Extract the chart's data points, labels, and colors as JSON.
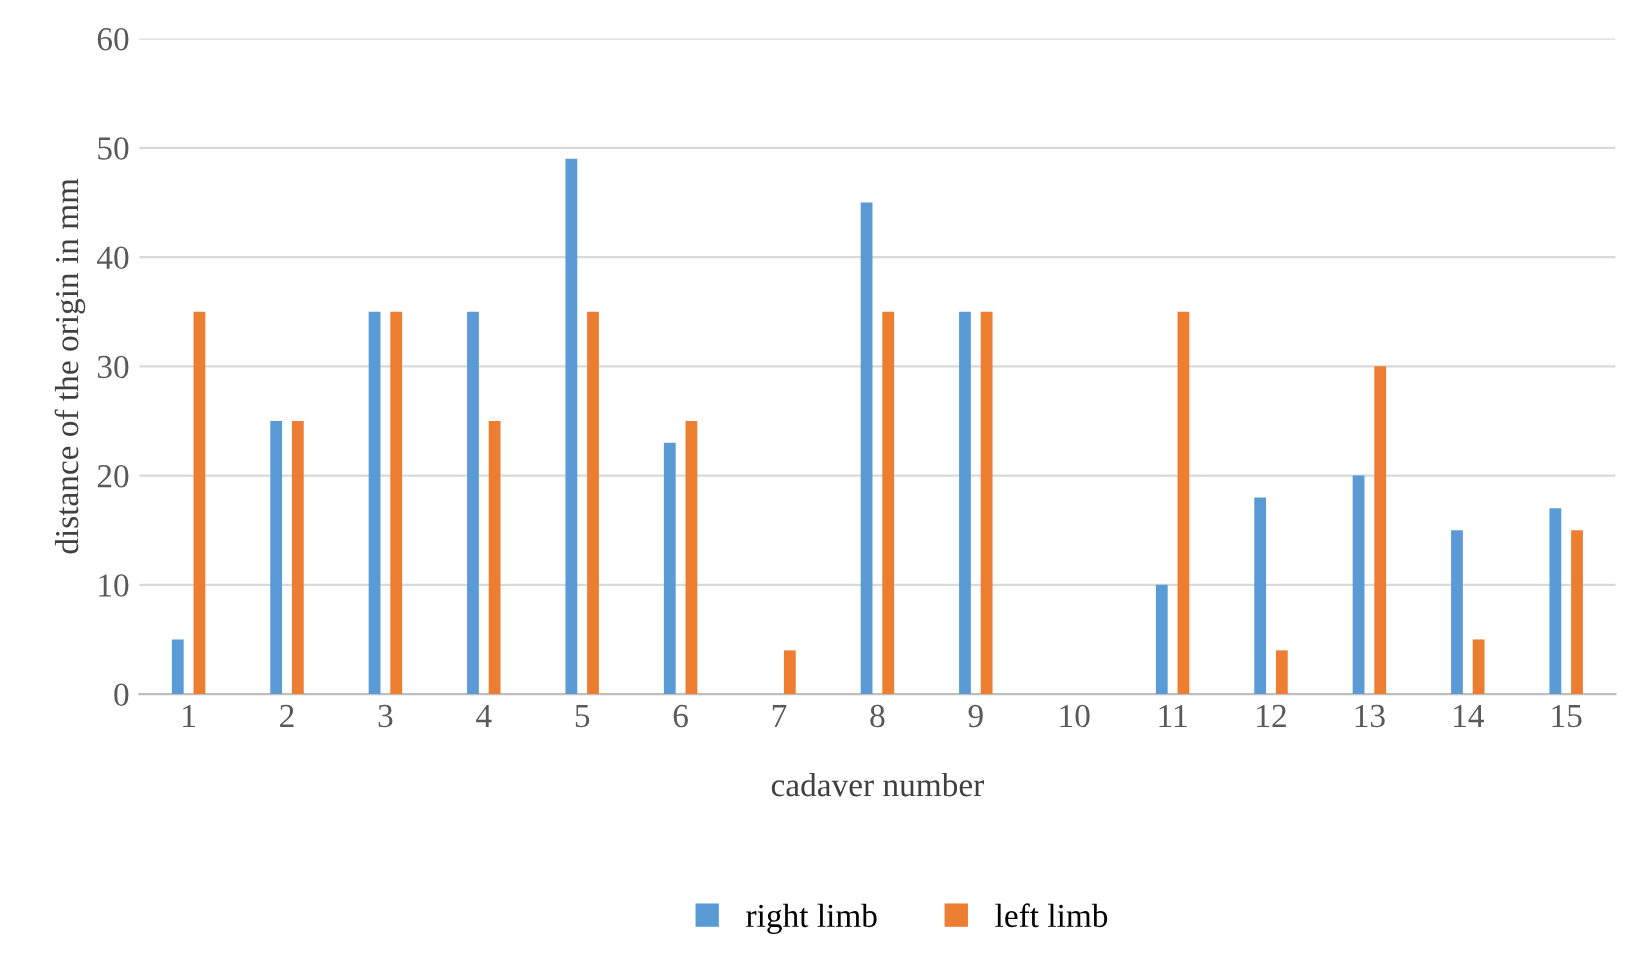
{
  "chart_data": {
    "type": "bar",
    "xlabel": "cadaver number",
    "ylabel": "distance of the origin in mm",
    "categories": [
      "1",
      "2",
      "3",
      "4",
      "5",
      "6",
      "7",
      "8",
      "9",
      "10",
      "11",
      "12",
      "13",
      "14",
      "15"
    ],
    "series": [
      {
        "name": "right limb",
        "color": "#5b9bd5",
        "values": [
          5,
          25,
          35,
          35,
          49,
          23,
          0,
          45,
          35,
          0,
          10,
          18,
          20,
          15,
          17
        ]
      },
      {
        "name": "left limb",
        "color": "#ed7d31",
        "values": [
          35,
          25,
          35,
          25,
          35,
          25,
          4,
          35,
          35,
          0,
          35,
          4,
          30,
          5,
          15
        ]
      }
    ],
    "ylim": [
      0,
      60
    ],
    "yticks": [
      0,
      10,
      20,
      30,
      40,
      50,
      60
    ],
    "grid": "y",
    "legend": "bottom"
  }
}
